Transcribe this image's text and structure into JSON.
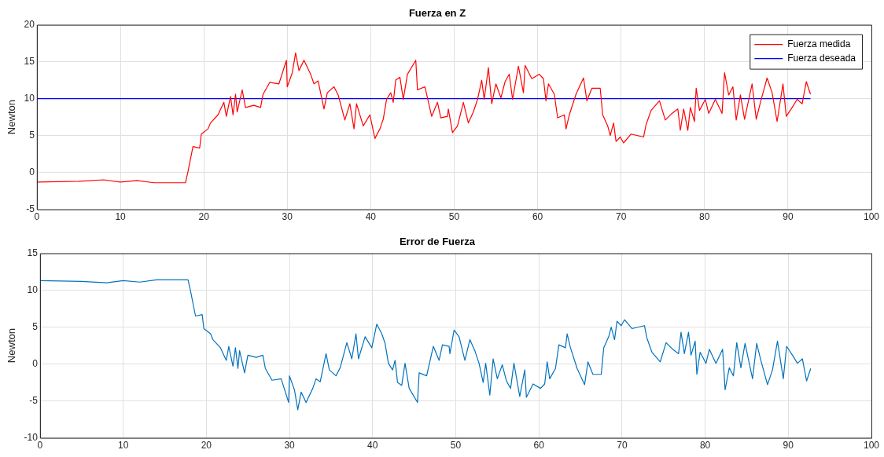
{
  "chart_data": [
    {
      "type": "line",
      "title": "Fuerza en Z",
      "ylabel": "Newton",
      "xlim": [
        0,
        100
      ],
      "xticks": [
        0,
        10,
        20,
        30,
        40,
        50,
        60,
        70,
        80,
        90,
        100
      ],
      "ylim": [
        -5,
        20
      ],
      "yticks": [
        -5,
        0,
        5,
        10,
        15,
        20
      ],
      "grid": true,
      "legend": "top right",
      "marker": "none",
      "line_style": "solid",
      "series": [
        {
          "name": "Fuerza medida",
          "color": "#ff0000",
          "x": [
            0,
            5,
            8,
            10,
            12,
            14,
            17.8,
            18.1,
            18.7,
            19.5,
            19.7,
            20.5,
            20.8,
            21.7,
            22.4,
            22.7,
            23.2,
            23.5,
            23.8,
            24.0,
            24.6,
            25.0,
            26.0,
            26.8,
            27.1,
            27.9,
            29.0,
            29.9,
            30.0,
            30.6,
            31.0,
            31.4,
            32.0,
            32.8,
            33.2,
            33.7,
            34.4,
            34.8,
            35.6,
            36.1,
            36.9,
            37.5,
            38.0,
            38.3,
            39.1,
            39.9,
            40.5,
            41.1,
            41.5,
            41.9,
            42.4,
            42.7,
            43.0,
            43.5,
            43.9,
            44.4,
            45.4,
            45.6,
            46.5,
            47.3,
            48.0,
            48.4,
            49.2,
            49.3,
            49.8,
            50.4,
            51.1,
            51.7,
            52.3,
            52.8,
            53.3,
            53.6,
            54.1,
            54.5,
            55.0,
            55.6,
            56.1,
            56.6,
            57.0,
            57.7,
            58.3,
            58.5,
            59.3,
            60.2,
            60.7,
            61.0,
            61.3,
            62.0,
            62.4,
            63.2,
            63.4,
            63.8,
            64.6,
            65.5,
            65.9,
            66.5,
            67.5,
            67.8,
            68.4,
            68.7,
            69.1,
            69.4,
            69.9,
            70.3,
            71.2,
            72.7,
            73.0,
            73.6,
            74.6,
            75.3,
            76.1,
            76.8,
            77.1,
            77.5,
            78.0,
            78.3,
            78.8,
            79.0,
            79.4,
            80.1,
            80.5,
            81.3,
            82.1,
            82.4,
            82.9,
            83.4,
            83.8,
            84.3,
            84.8,
            85.7,
            86.2,
            86.7,
            87.5,
            88.1,
            88.7,
            89.4,
            89.8,
            90.5,
            91.1,
            91.7,
            92.2,
            92.7
          ],
          "values": [
            -1.3,
            -1.2,
            -1.0,
            -1.3,
            -1.1,
            -1.4,
            -1.4,
            0.1,
            3.5,
            3.3,
            5.2,
            5.9,
            6.7,
            7.8,
            9.5,
            7.6,
            10.3,
            7.8,
            10.6,
            8.2,
            11.2,
            8.8,
            9.1,
            8.8,
            10.6,
            12.2,
            12.0,
            15.2,
            11.6,
            13.5,
            16.2,
            13.8,
            15.2,
            13.3,
            12.0,
            12.4,
            8.6,
            10.8,
            11.6,
            10.5,
            7.1,
            9.3,
            5.9,
            9.3,
            6.3,
            7.8,
            4.6,
            5.9,
            7.2,
            9.9,
            10.8,
            9.5,
            12.5,
            12.9,
            9.9,
            13.3,
            15.2,
            11.2,
            11.6,
            7.6,
            9.5,
            7.4,
            7.6,
            8.6,
            5.4,
            6.3,
            9.5,
            6.7,
            8.2,
            9.9,
            12.5,
            9.9,
            14.2,
            9.3,
            12.0,
            10.1,
            12.3,
            13.3,
            9.9,
            14.4,
            10.8,
            14.5,
            12.7,
            13.3,
            12.7,
            9.7,
            12.0,
            10.6,
            7.4,
            7.8,
            5.9,
            7.8,
            10.6,
            12.8,
            9.7,
            11.4,
            11.4,
            7.8,
            6.3,
            5.0,
            6.7,
            4.2,
            4.8,
            4.0,
            5.2,
            4.8,
            6.5,
            8.4,
            9.7,
            7.1,
            8.0,
            8.6,
            5.7,
            8.6,
            5.7,
            8.8,
            6.9,
            11.4,
            8.4,
            9.9,
            8.0,
            9.9,
            8.0,
            13.5,
            10.5,
            11.6,
            7.1,
            10.5,
            7.2,
            12.0,
            7.2,
            9.5,
            12.8,
            10.8,
            6.9,
            12.0,
            7.6,
            8.8,
            9.9,
            9.3,
            12.3,
            10.6
          ]
        },
        {
          "name": "Fuerza deseada",
          "color": "#0000ff",
          "x": [
            0,
            92.7
          ],
          "values": [
            10,
            10
          ]
        }
      ]
    },
    {
      "type": "line",
      "title": "Error de Fuerza",
      "ylabel": "Newton",
      "xlim": [
        0,
        100
      ],
      "xticks": [
        0,
        10,
        20,
        30,
        40,
        50,
        60,
        70,
        80,
        90,
        100
      ],
      "ylim": [
        -10,
        15
      ],
      "yticks": [
        -10,
        -5,
        0,
        5,
        10,
        15
      ],
      "grid": true,
      "marker": "none",
      "line_style": "solid",
      "series": [
        {
          "color": "#0072bd",
          "x": [
            0,
            5,
            8,
            10,
            12,
            14,
            17.8,
            18.1,
            18.7,
            19.5,
            19.7,
            20.5,
            20.8,
            21.7,
            22.4,
            22.7,
            23.2,
            23.5,
            23.8,
            24.0,
            24.6,
            25.0,
            26.0,
            26.8,
            27.1,
            27.9,
            29.0,
            29.9,
            30.0,
            30.6,
            31.0,
            31.4,
            32.0,
            32.8,
            33.2,
            33.7,
            34.4,
            34.8,
            35.6,
            36.1,
            36.9,
            37.5,
            38.0,
            38.3,
            39.1,
            39.9,
            40.5,
            41.1,
            41.5,
            41.9,
            42.4,
            42.7,
            43.0,
            43.5,
            43.9,
            44.4,
            45.4,
            45.6,
            46.5,
            47.3,
            48.0,
            48.4,
            49.2,
            49.3,
            49.8,
            50.4,
            51.1,
            51.7,
            52.3,
            52.8,
            53.3,
            53.6,
            54.1,
            54.5,
            55.0,
            55.6,
            56.1,
            56.6,
            57.0,
            57.7,
            58.3,
            58.5,
            59.3,
            60.2,
            60.7,
            61.0,
            61.3,
            62.0,
            62.4,
            63.2,
            63.4,
            63.8,
            64.6,
            65.5,
            65.9,
            66.5,
            67.5,
            67.8,
            68.4,
            68.7,
            69.1,
            69.4,
            69.9,
            70.3,
            71.2,
            72.7,
            73.0,
            73.6,
            74.6,
            75.3,
            76.1,
            76.8,
            77.1,
            77.5,
            78.0,
            78.3,
            78.8,
            79.0,
            79.4,
            80.1,
            80.5,
            81.3,
            82.1,
            82.4,
            82.9,
            83.4,
            83.8,
            84.3,
            84.8,
            85.7,
            86.2,
            86.7,
            87.5,
            88.1,
            88.7,
            89.4,
            89.8,
            90.5,
            91.1,
            91.7,
            92.2,
            92.7
          ],
          "values": [
            11.3,
            11.2,
            11.0,
            11.3,
            11.1,
            11.4,
            11.4,
            9.9,
            6.5,
            6.7,
            4.8,
            4.1,
            3.3,
            2.2,
            0.5,
            2.4,
            -0.3,
            2.2,
            -0.6,
            1.8,
            -1.2,
            1.2,
            0.9,
            1.2,
            -0.6,
            -2.2,
            -2.0,
            -5.2,
            -1.6,
            -3.5,
            -6.2,
            -3.8,
            -5.2,
            -3.3,
            -2.0,
            -2.4,
            1.4,
            -0.8,
            -1.6,
            -0.5,
            2.9,
            0.7,
            4.1,
            0.7,
            3.7,
            2.2,
            5.4,
            4.1,
            2.8,
            0.1,
            -0.8,
            0.5,
            -2.5,
            -2.9,
            0.1,
            -3.3,
            -5.2,
            -1.2,
            -1.6,
            2.4,
            0.5,
            2.6,
            2.4,
            1.4,
            4.6,
            3.7,
            0.5,
            3.3,
            1.8,
            0.1,
            -2.5,
            0.1,
            -4.2,
            0.7,
            -2.0,
            -0.1,
            -2.3,
            -3.3,
            0.1,
            -4.4,
            -0.8,
            -4.5,
            -2.7,
            -3.3,
            -2.7,
            0.3,
            -2.0,
            -0.6,
            2.6,
            2.2,
            4.1,
            2.2,
            -0.6,
            -2.8,
            0.3,
            -1.4,
            -1.4,
            2.2,
            3.7,
            5.0,
            3.3,
            5.8,
            5.2,
            6.0,
            4.8,
            5.2,
            3.5,
            1.6,
            0.3,
            2.9,
            2.0,
            1.4,
            4.3,
            1.4,
            4.3,
            1.2,
            3.1,
            -1.4,
            1.6,
            0.1,
            2.0,
            0.1,
            2.0,
            -3.5,
            -0.5,
            -1.6,
            2.9,
            -0.5,
            2.8,
            -2.0,
            2.8,
            0.5,
            -2.8,
            -0.8,
            3.1,
            -2.0,
            2.4,
            1.2,
            0.1,
            0.7,
            -2.3,
            -0.6
          ]
        }
      ]
    }
  ]
}
